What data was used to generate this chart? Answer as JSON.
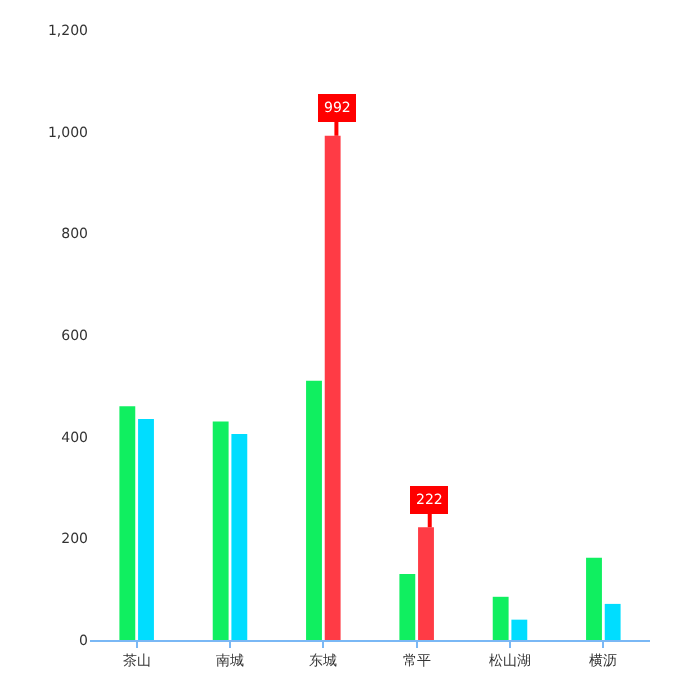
{
  "chart_data": {
    "type": "bar",
    "categories": [
      "茶山",
      "南城",
      "东城",
      "常平",
      "松山湖",
      "横沥"
    ],
    "series": [
      {
        "color": "#10ef60",
        "values": [
          460,
          430,
          510,
          130,
          85,
          162
        ]
      },
      {
        "colors": [
          "#00ddff",
          "#00ddff",
          "#ff3b45",
          "#ff3b45",
          "#00ddff",
          "#00ddff"
        ],
        "values": [
          435,
          405,
          992,
          222,
          40,
          71
        ],
        "value_labels": [
          null,
          null,
          "992",
          "222",
          null,
          null
        ]
      }
    ],
    "ylim": [
      0,
      1200
    ],
    "yticks": [
      0,
      200,
      400,
      600,
      800,
      {
        "value": 1000,
        "label": "1,000"
      },
      {
        "value": 1200,
        "label": "1,200"
      }
    ]
  }
}
